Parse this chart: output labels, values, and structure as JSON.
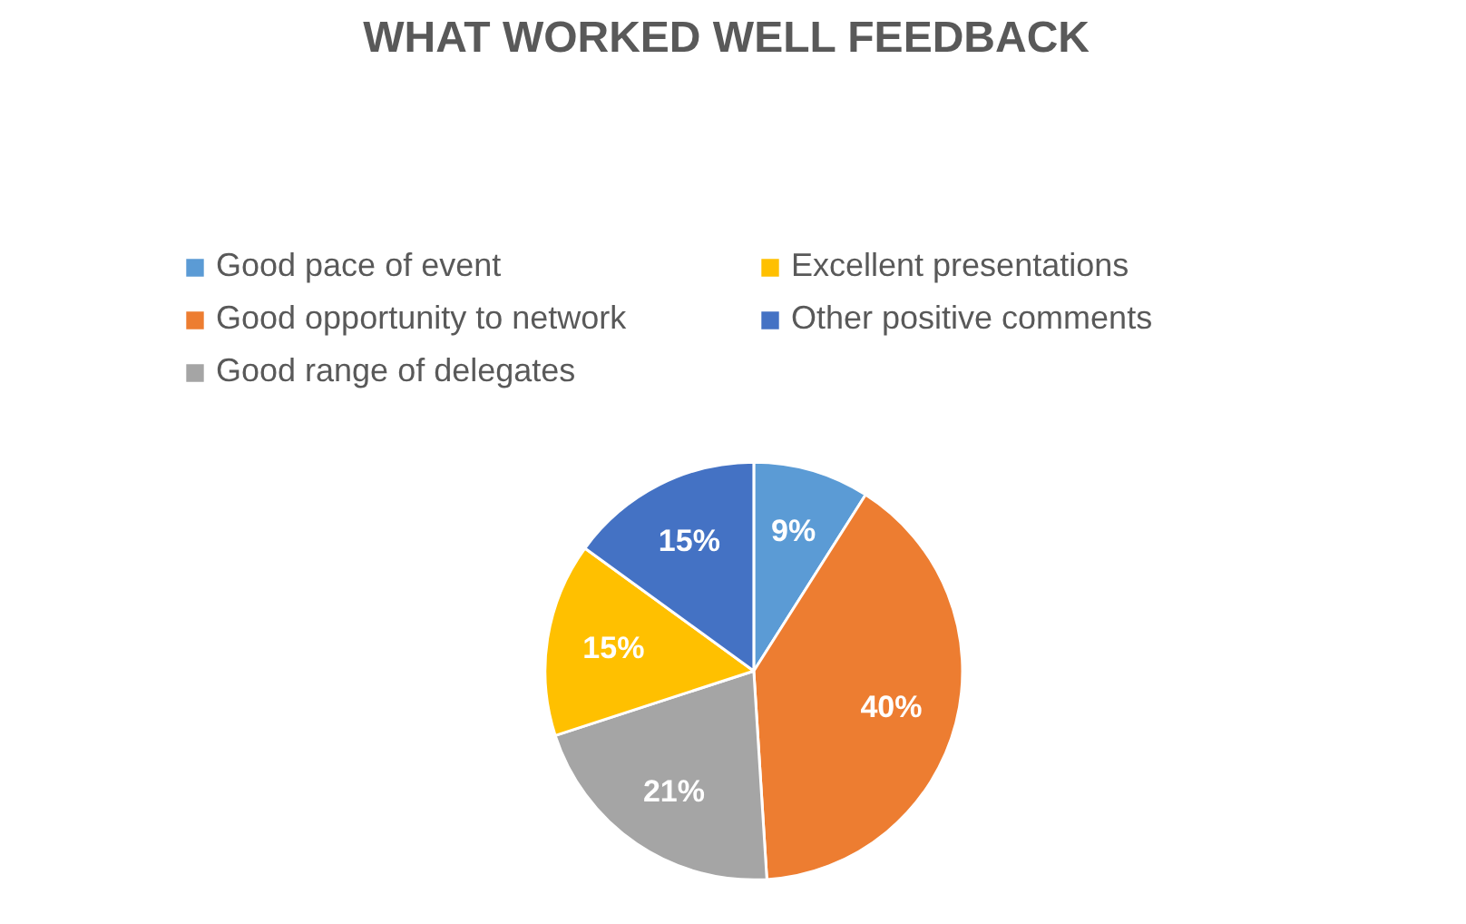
{
  "chart_data": {
    "type": "pie",
    "title": "WHAT WORKED WELL FEEDBACK",
    "categories": [
      "Good pace of event",
      "Good opportunity to network",
      "Good range of delegates",
      "Excellent presentations",
      "Other positive comments"
    ],
    "values": [
      9,
      40,
      21,
      15,
      15
    ],
    "colors": [
      "#5b9bd5",
      "#ed7d31",
      "#a5a5a5",
      "#ffc000",
      "#4472c4"
    ],
    "value_labels": [
      "9%",
      "40%",
      "21%",
      "15%",
      "15%"
    ],
    "legend": "top"
  }
}
